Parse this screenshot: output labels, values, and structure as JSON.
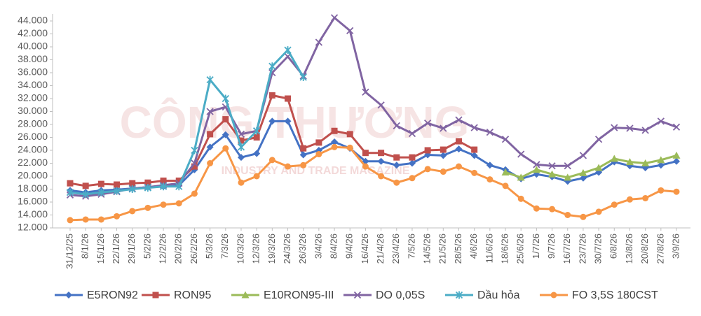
{
  "chart_data": {
    "type": "line",
    "watermark": [
      "CÔNG THƯƠNG",
      "INDUSTRY AND TRADE MAGAZINE"
    ],
    "categories": [
      "31/12/25",
      "8/1/26",
      "15/1/26",
      "22/1/26",
      "29/1/26",
      "5/2/26",
      "12/2/26",
      "20/2/26",
      "26/2/26",
      "5/3/26",
      "7/3/26",
      "10/3/26",
      "12/3/26",
      "19/3/26",
      "24/3/26",
      "26/3/26",
      "3/4/26",
      "8/4/26",
      "9/4/26",
      "16/4/26",
      "21/4/26",
      "23/4/26",
      "7/5/26",
      "14/5/26",
      "21/5/26",
      "28/5/26",
      "4/6/26",
      "11/6/26",
      "18/6/26",
      "25/6/26",
      "1/7/26",
      "9/7/26",
      "16/7/26",
      "23/7/26",
      "30/7/26",
      "6/8/26",
      "13/8/26",
      "20/8/26",
      "27/8/26",
      "3/9/26"
    ],
    "series": [
      {
        "name": "E5RON92",
        "color": "#4472c4",
        "marker": "diamond",
        "values": [
          17800,
          17500,
          17800,
          17900,
          18100,
          18300,
          18400,
          18600,
          21000,
          24500,
          26400,
          22900,
          23500,
          28500,
          28500,
          23300,
          24000,
          25300,
          24300,
          22300,
          22300,
          21700,
          22000,
          23300,
          23200,
          24200,
          23200,
          21700,
          21000,
          19600,
          20300,
          19900,
          19200,
          19700,
          20600,
          22200,
          21600,
          21300,
          21700,
          22300
        ]
      },
      {
        "name": "RON95",
        "color": "#c0504d",
        "marker": "square",
        "values": [
          18900,
          18500,
          18800,
          18700,
          18900,
          19000,
          19300,
          19300,
          21500,
          26500,
          28800,
          25500,
          26000,
          32500,
          32000,
          24300,
          25200,
          27000,
          26500,
          23600,
          23600,
          22900,
          22900,
          24000,
          24100,
          25400,
          24100,
          null,
          null,
          null,
          null,
          null,
          null,
          null,
          null,
          null,
          null,
          null,
          null,
          null
        ]
      },
      {
        "name": "E10RON95-III",
        "color": "#9bbb59",
        "marker": "triangle",
        "values": [
          null,
          null,
          null,
          null,
          null,
          null,
          null,
          null,
          null,
          null,
          null,
          null,
          null,
          null,
          null,
          null,
          null,
          null,
          null,
          null,
          null,
          null,
          null,
          null,
          null,
          null,
          null,
          null,
          20600,
          19800,
          21000,
          20300,
          19800,
          20500,
          21300,
          22700,
          22200,
          22000,
          22500,
          23200
        ]
      },
      {
        "name": "DO 0,05S",
        "color": "#8064a2",
        "marker": "x",
        "values": [
          17100,
          16900,
          17200,
          17600,
          18100,
          18300,
          18600,
          18900,
          22000,
          30000,
          30700,
          26500,
          27000,
          36000,
          38500,
          35500,
          40700,
          44500,
          42500,
          33000,
          31000,
          27800,
          26600,
          28200,
          27400,
          28700,
          27500,
          26800,
          25700,
          23400,
          21800,
          21600,
          21600,
          23200,
          25700,
          27500,
          27400,
          27100,
          28500,
          27600
        ]
      },
      {
        "name": "Dầu hỏa",
        "color": "#4bacc6",
        "marker": "star",
        "values": [
          17500,
          17200,
          17500,
          17700,
          18000,
          18200,
          18400,
          18400,
          24000,
          34900,
          32000,
          24500,
          27000,
          37000,
          39500,
          35300,
          null,
          null,
          null,
          null,
          null,
          null,
          null,
          null,
          null,
          null,
          null,
          null,
          null,
          null,
          null,
          null,
          null,
          null,
          null,
          null,
          null,
          null,
          null,
          null
        ]
      },
      {
        "name": "FO 3,5S 180CST",
        "color": "#f79646",
        "marker": "circle",
        "values": [
          13200,
          13300,
          13300,
          13800,
          14600,
          15100,
          15600,
          15800,
          17300,
          22000,
          24300,
          19000,
          20000,
          22500,
          21500,
          21700,
          23400,
          24500,
          24400,
          21500,
          20000,
          19000,
          19700,
          21100,
          20700,
          21500,
          20500,
          19500,
          18500,
          16500,
          15000,
          14900,
          14000,
          13700,
          14500,
          15600,
          16400,
          16600,
          17800,
          17600
        ]
      }
    ],
    "ylim": [
      12000,
      44000
    ],
    "yticks": [
      {
        "value": 12000,
        "label": "12.000"
      },
      {
        "value": 14000,
        "label": "14.000"
      },
      {
        "value": 16000,
        "label": "16.000"
      },
      {
        "value": 18000,
        "label": "18.000"
      },
      {
        "value": 20000,
        "label": "20.000"
      },
      {
        "value": 22000,
        "label": "22.000"
      },
      {
        "value": 24000,
        "label": "24.000"
      },
      {
        "value": 26000,
        "label": "26.000"
      },
      {
        "value": 28000,
        "label": "28.000"
      },
      {
        "value": 30000,
        "label": "30.000"
      },
      {
        "value": 32000,
        "label": "32.000"
      },
      {
        "value": 34000,
        "label": "34.000"
      },
      {
        "value": 36000,
        "label": "36.000"
      },
      {
        "value": 38000,
        "label": "38.000"
      },
      {
        "value": 40000,
        "label": "40.000"
      },
      {
        "value": 42000,
        "label": "42.000"
      },
      {
        "value": 44000,
        "label": "44.000"
      }
    ],
    "grid": false,
    "legend": "bottom"
  }
}
